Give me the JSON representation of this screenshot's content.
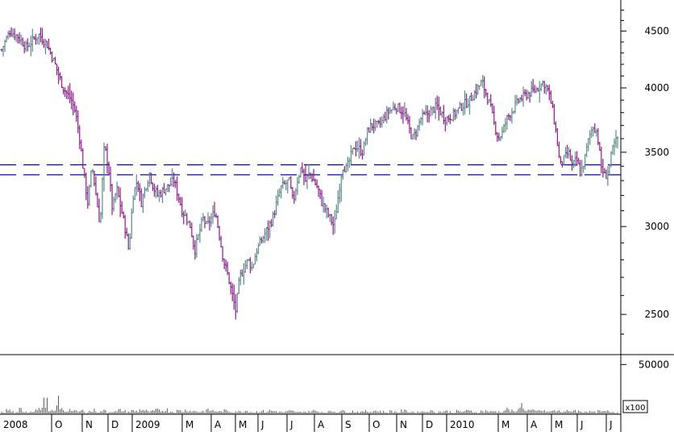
{
  "chart_data": {
    "type": "ohlc",
    "title": "",
    "price_axis": {
      "scale": "log",
      "range": [
        2300,
        4800
      ],
      "ticks": [
        {
          "value": 2500,
          "label": "2500"
        },
        {
          "value": 3000,
          "label": "3000"
        },
        {
          "value": 3500,
          "label": "3500"
        },
        {
          "value": 4000,
          "label": "4000"
        },
        {
          "value": 4500,
          "label": "4500"
        }
      ],
      "minor_ticks": [
        2400,
        2600,
        2700,
        2800,
        2900,
        3100,
        3200,
        3300,
        3400,
        3600,
        3700,
        3800,
        3900,
        4100,
        4200,
        4300,
        4400,
        4600,
        4700
      ]
    },
    "volume_axis": {
      "range": [
        0,
        60000
      ],
      "ticks": [
        {
          "value": 50000,
          "label": "50000"
        }
      ],
      "multiplier_label": "x100"
    },
    "x_axis_labels": [
      "2008",
      "O",
      "N",
      "D",
      "2009",
      "M",
      "A",
      "M",
      "J",
      "J",
      "A",
      "S",
      "O",
      "N",
      "D",
      "2010",
      "M",
      "A",
      "M",
      "J",
      "J"
    ],
    "horizontal_lines": [
      {
        "value": 3410,
        "style": "dashed",
        "color": "#0000cc"
      },
      {
        "value": 3340,
        "style": "dashed",
        "color": "#0000cc"
      }
    ],
    "price_path": [
      [
        0,
        4330
      ],
      [
        2,
        4500
      ],
      [
        4,
        4450
      ],
      [
        6,
        4350
      ],
      [
        9,
        4470
      ],
      [
        11,
        4380
      ],
      [
        13,
        4200
      ],
      [
        15,
        4000
      ],
      [
        17,
        3900
      ],
      [
        18,
        3800
      ],
      [
        19,
        3600
      ],
      [
        20,
        3350
      ],
      [
        21,
        3150
      ],
      [
        22,
        3400
      ],
      [
        23,
        3200
      ],
      [
        24,
        3000
      ],
      [
        25,
        3550
      ],
      [
        26,
        3400
      ],
      [
        27,
        3100
      ],
      [
        28,
        3250
      ],
      [
        30,
        3000
      ],
      [
        31,
        2850
      ],
      [
        32,
        3200
      ],
      [
        33,
        3300
      ],
      [
        34,
        3150
      ],
      [
        36,
        3350
      ],
      [
        37,
        3250
      ],
      [
        38,
        3200
      ],
      [
        40,
        3250
      ],
      [
        42,
        3300
      ],
      [
        44,
        3100
      ],
      [
        46,
        3000
      ],
      [
        47,
        2850
      ],
      [
        49,
        3050
      ],
      [
        50,
        3000
      ],
      [
        52,
        3100
      ],
      [
        53,
        2950
      ],
      [
        54,
        2800
      ],
      [
        55,
        2720
      ],
      [
        56,
        2620
      ],
      [
        57,
        2520
      ],
      [
        58,
        2700
      ],
      [
        60,
        2800
      ],
      [
        61,
        2750
      ],
      [
        62,
        2850
      ],
      [
        64,
        2950
      ],
      [
        66,
        3050
      ],
      [
        68,
        3250
      ],
      [
        70,
        3300
      ],
      [
        71,
        3150
      ],
      [
        72,
        3300
      ],
      [
        73,
        3400
      ],
      [
        74,
        3300
      ],
      [
        75,
        3350
      ],
      [
        77,
        3250
      ],
      [
        78,
        3150
      ],
      [
        80,
        3050
      ],
      [
        81,
        3000
      ],
      [
        82,
        3200
      ],
      [
        83,
        3400
      ],
      [
        84,
        3380
      ],
      [
        86,
        3550
      ],
      [
        88,
        3500
      ],
      [
        89,
        3650
      ],
      [
        90,
        3700
      ],
      [
        92,
        3700
      ],
      [
        94,
        3800
      ],
      [
        96,
        3850
      ],
      [
        98,
        3800
      ],
      [
        100,
        3600
      ],
      [
        101,
        3650
      ],
      [
        102,
        3750
      ],
      [
        104,
        3800
      ],
      [
        106,
        3850
      ],
      [
        108,
        3750
      ],
      [
        110,
        3780
      ],
      [
        112,
        3850
      ],
      [
        114,
        3900
      ],
      [
        116,
        4000
      ],
      [
        117,
        4050
      ],
      [
        118,
        3950
      ],
      [
        119,
        3850
      ],
      [
        120,
        3700
      ],
      [
        121,
        3600
      ],
      [
        122,
        3650
      ],
      [
        123,
        3750
      ],
      [
        124,
        3800
      ],
      [
        126,
        3900
      ],
      [
        128,
        3950
      ],
      [
        130,
        3980
      ],
      [
        132,
        4050
      ],
      [
        133,
        3980
      ],
      [
        134,
        3850
      ],
      [
        135,
        3650
      ],
      [
        136,
        3400
      ],
      [
        137,
        3450
      ],
      [
        138,
        3500
      ],
      [
        139,
        3400
      ],
      [
        140,
        3450
      ],
      [
        141,
        3350
      ],
      [
        142,
        3450
      ],
      [
        143,
        3600
      ],
      [
        144,
        3700
      ],
      [
        145,
        3650
      ],
      [
        146,
        3400
      ],
      [
        147,
        3320
      ],
      [
        148,
        3400
      ],
      [
        149,
        3550
      ],
      [
        150,
        3600
      ]
    ],
    "volume_series": [
      2000,
      4000,
      2500,
      1500,
      5000,
      3000,
      2000,
      3500,
      4500,
      6500,
      12000,
      2500,
      3000,
      13500,
      5000,
      3000,
      4500,
      3000,
      2500,
      3500,
      2000,
      3000,
      4000,
      2500,
      3500,
      2000,
      3000,
      2500,
      4000,
      3000,
      2500,
      3500,
      3000,
      4500,
      3500,
      2500,
      3000,
      4000,
      3500,
      4500,
      3000,
      2500,
      3500,
      3000,
      4000,
      3500,
      3000,
      2500,
      3000,
      4000,
      3500,
      3000,
      2500,
      3500,
      3000,
      2500,
      3000,
      2500,
      3500,
      3000,
      2000,
      2500,
      3000,
      2500,
      3500,
      3000,
      2500,
      2000,
      2500,
      3000,
      2500,
      2000,
      3000,
      2500,
      3500,
      3000,
      2500,
      2000,
      2500,
      3000,
      2500,
      3500,
      3000,
      2500,
      3000,
      2500,
      2000,
      3000,
      2500,
      3500,
      3000,
      2500,
      2000,
      3000,
      2500,
      2000,
      3500,
      3000,
      2500,
      2000,
      3000,
      2500,
      3500,
      3000,
      2000,
      2500,
      3000,
      2500,
      2000,
      3000,
      2500,
      3500,
      3000,
      2500,
      2000,
      3000,
      3500,
      2500,
      3000,
      2500,
      3000,
      5000,
      3500,
      2500,
      9000,
      5500,
      4000,
      3500,
      3000,
      4000,
      3000,
      2500,
      3500,
      3000,
      2500,
      3000,
      2500,
      4000,
      3000,
      2500,
      3000,
      2500,
      2000,
      3000,
      2500,
      3000,
      2500,
      2000,
      3000
    ]
  }
}
